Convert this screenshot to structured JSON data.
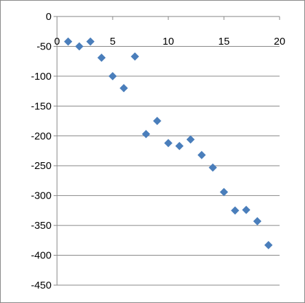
{
  "chart_data": {
    "type": "scatter",
    "title": "",
    "xlabel": "",
    "ylabel": "",
    "xlim": [
      0,
      20
    ],
    "ylim": [
      -450,
      0
    ],
    "x_ticks": [
      "0",
      "5",
      "10",
      "15",
      "20"
    ],
    "y_ticks": [
      "0",
      "-50",
      "-100",
      "-150",
      "-200",
      "-250",
      "-300",
      "-350",
      "-400",
      "-450"
    ],
    "x_tick_values": [
      0,
      5,
      10,
      15,
      20
    ],
    "y_tick_values": [
      0,
      -50,
      -100,
      -150,
      -200,
      -250,
      -300,
      -350,
      -400,
      -450
    ],
    "grid": "horizontal",
    "x_axis_position": "top (y = 0)",
    "marker": "diamond",
    "colors": {
      "marker": "#4a7ebb",
      "grid": "#868686",
      "axis": "#868686"
    },
    "series": [
      {
        "x": [
          1,
          2,
          3,
          4,
          5,
          6,
          7,
          8,
          9,
          10,
          11,
          12,
          13,
          14,
          15,
          16,
          17,
          18,
          19
        ],
        "y": [
          -42,
          -50,
          -42,
          -69,
          -100,
          -120,
          -67,
          -197,
          -175,
          -212,
          -217,
          -206,
          -232,
          -253,
          -294,
          -325,
          -324,
          -343,
          -383
        ]
      }
    ]
  }
}
